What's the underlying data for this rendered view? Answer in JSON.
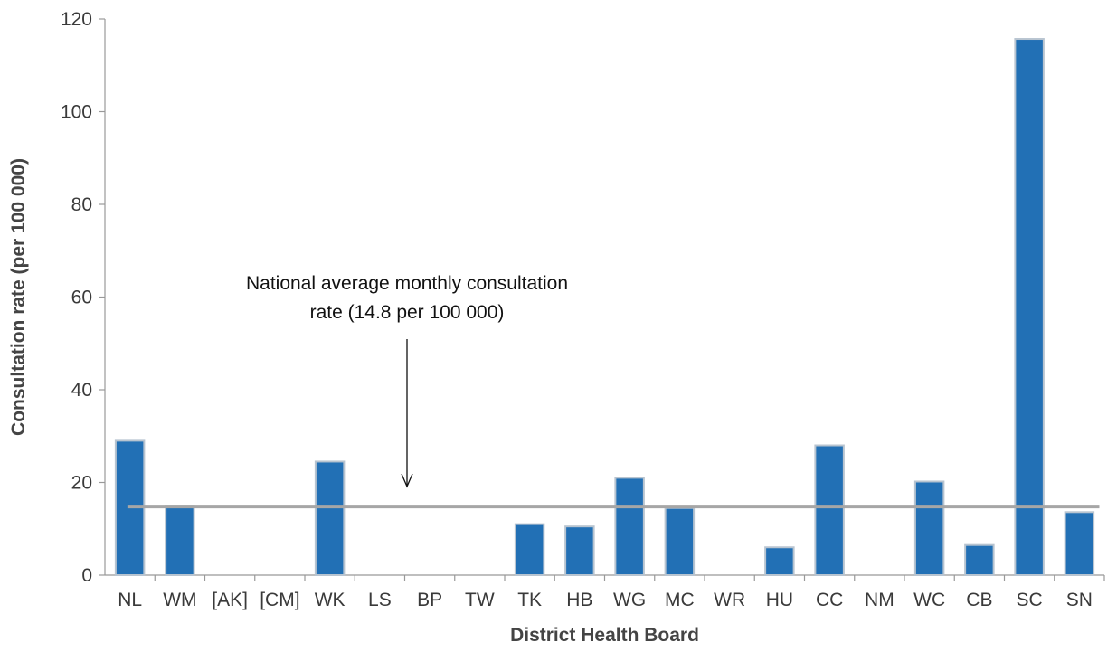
{
  "chart_data": {
    "type": "bar",
    "xlabel": "District Health Board",
    "ylabel": "Consultation rate (per 100 000)",
    "categories": [
      "NL",
      "WM",
      "[AK]",
      "[CM]",
      "WK",
      "LS",
      "BP",
      "TW",
      "TK",
      "HB",
      "WG",
      "MC",
      "WR",
      "HU",
      "CC",
      "NM",
      "WC",
      "CB",
      "SC",
      "SN"
    ],
    "values": [
      29,
      15,
      0,
      0,
      24.5,
      0,
      0,
      0,
      11,
      10.5,
      21,
      14.5,
      0,
      6,
      28,
      0,
      20.2,
      6.5,
      115.7,
      13.6
    ],
    "ylim": [
      0,
      120
    ],
    "yticks": [
      0,
      20,
      40,
      60,
      80,
      100,
      120
    ],
    "grid": false,
    "reference_line": {
      "value": 14.8
    },
    "annotation": {
      "lines": [
        "National average monthly consultation",
        "rate (14.8 per 100 000)"
      ]
    },
    "colors": {
      "bar": "#2270b5",
      "bar_edge": "#b8c4d0",
      "reference": "#a6a6a6",
      "axis": "#999999"
    }
  }
}
